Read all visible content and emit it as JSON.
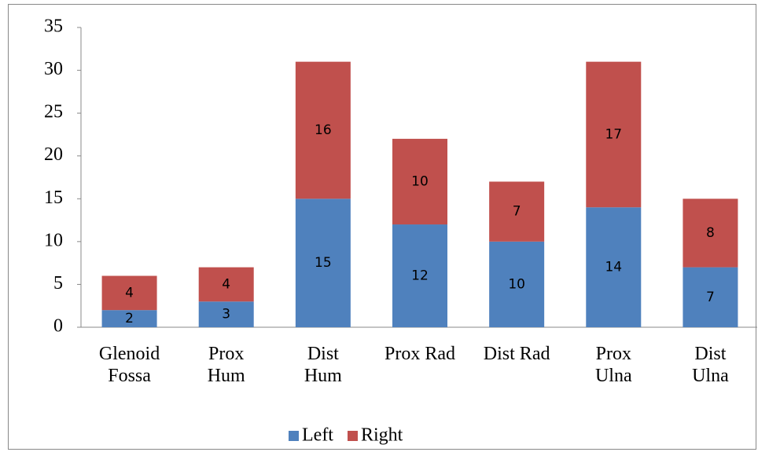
{
  "chart_data": {
    "type": "stacked_bar",
    "categories": [
      "Glenoid\nFossa",
      "Prox\nHum",
      "Dist\nHum",
      "Prox Rad",
      "Dist Rad",
      "Prox\nUlna",
      "Dist\nUlna"
    ],
    "series": [
      {
        "name": "Left",
        "color": "#4f81bd",
        "values": [
          2,
          3,
          15,
          12,
          10,
          14,
          7
        ]
      },
      {
        "name": "Right",
        "color": "#c0504d",
        "values": [
          4,
          4,
          16,
          10,
          7,
          17,
          8
        ]
      }
    ],
    "ylim": [
      0,
      35
    ],
    "yticks": [
      0,
      5,
      10,
      15,
      20,
      25,
      30,
      35
    ],
    "grid": false,
    "legend": "bottom"
  }
}
